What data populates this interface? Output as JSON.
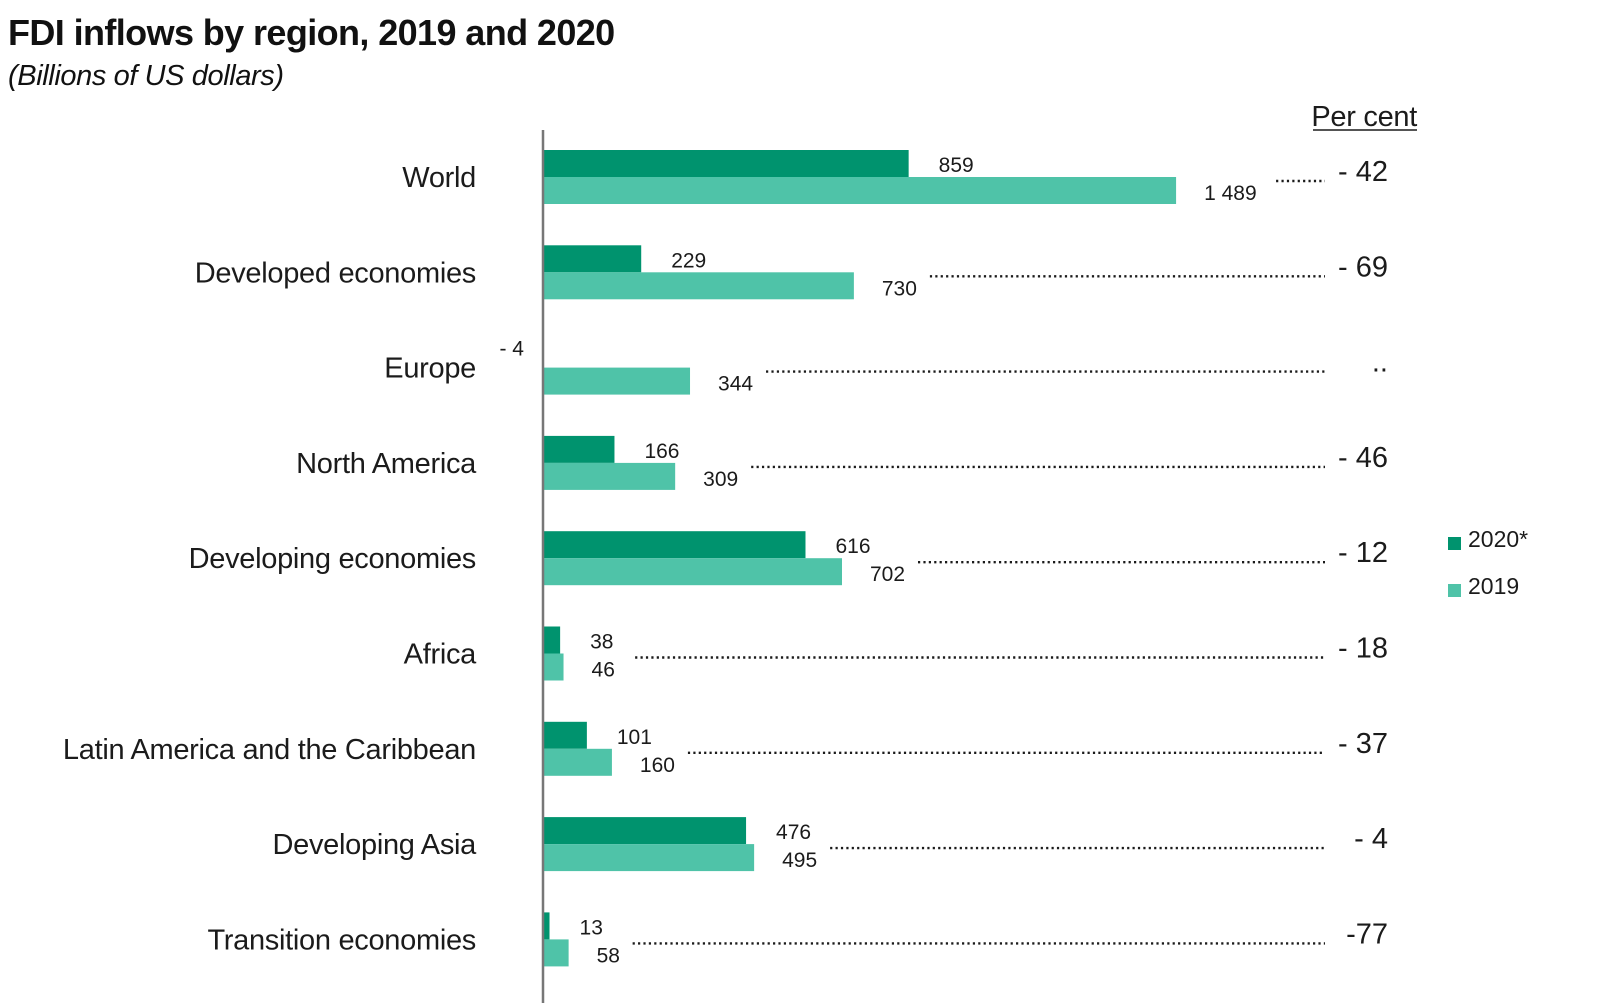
{
  "title": "FDI inflows by region, 2019 and 2020",
  "subtitle": "(Billions of US dollars)",
  "percent_header": "Per cent",
  "chart_data": {
    "type": "bar",
    "orientation": "horizontal",
    "title": "FDI inflows by region, 2019 and 2020",
    "subtitle": "(Billions of US dollars)",
    "categories": [
      "World",
      "Developed economies",
      "Europe",
      "North America",
      "Developing economies",
      "Africa",
      "Latin America and the Caribbean",
      "Developing Asia",
      "Transition economies"
    ],
    "series": [
      {
        "name": "2020*",
        "color": "#00936e",
        "values": [
          859,
          229,
          -4,
          166,
          616,
          38,
          101,
          476,
          13
        ],
        "labels": [
          "859",
          "229",
          "- 4",
          "166",
          "616",
          "38",
          "101",
          "476",
          "13"
        ]
      },
      {
        "name": "2019",
        "color": "#4fc3a8",
        "values": [
          1489,
          730,
          344,
          309,
          702,
          46,
          160,
          495,
          58
        ],
        "labels": [
          "1 489",
          "730",
          "344",
          "309",
          "702",
          "46",
          "160",
          "495",
          "58"
        ]
      }
    ],
    "percent_change": [
      "- 42",
      "- 69",
      "..",
      "- 46",
      "- 12",
      "- 18",
      "- 37",
      "- 4",
      "-77"
    ],
    "xlim": [
      0,
      1600
    ],
    "grid": false,
    "legend": {
      "position": "right",
      "entries": [
        "2020*",
        "2019"
      ]
    }
  }
}
